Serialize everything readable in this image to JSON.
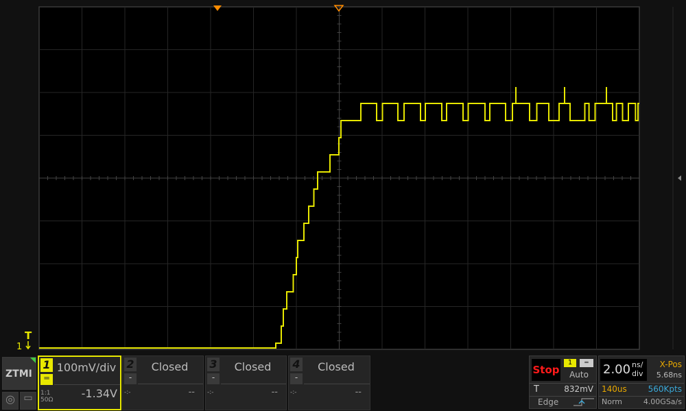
{
  "status": {
    "run_state": "Stop"
  },
  "logo": "ZTMI",
  "channels": [
    {
      "num": "1",
      "scale": "100mV/div",
      "offset": "-1.34V",
      "coupling_icon": "dc-coupling-icon",
      "probe": "1:1",
      "impedance": "50Ω",
      "active": true,
      "color": "#e8e800"
    },
    {
      "num": "2",
      "scale": "Closed",
      "offset": "--",
      "minus": "-",
      "coupling": "-:-"
    },
    {
      "num": "3",
      "scale": "Closed",
      "offset": "--",
      "minus": "-",
      "coupling": "-:-"
    },
    {
      "num": "4",
      "scale": "Closed",
      "offset": "--",
      "minus": "-",
      "coupling": "-:-"
    }
  ],
  "trigger": {
    "source": "1",
    "mode": "Auto",
    "label": "T",
    "level": "832mV",
    "type": "Edge",
    "slope_icon": "rising-edge-icon"
  },
  "timebase": {
    "value": "2.00",
    "unit_top": "ns/",
    "unit_bottom": "div",
    "xpos_label": "X-Pos",
    "xpos": "5.68ns",
    "record_time": "140us",
    "memory": "560Kpts",
    "acq_mode": "Norm",
    "sample_rate": "4.00GSa/s"
  },
  "markers": {
    "channel_ground": "1",
    "trigger_level": "T"
  },
  "colors": {
    "ch1": "#e8e800",
    "trigger_marker": "#ff8c00",
    "stop": "#ff1a1a",
    "record": "#e8a800",
    "memory": "#3aa8d8"
  }
}
